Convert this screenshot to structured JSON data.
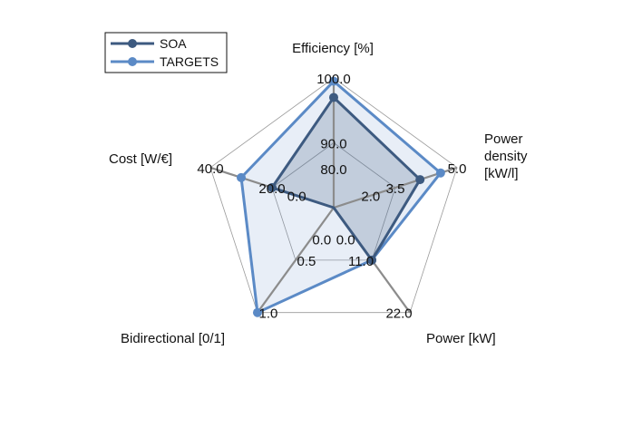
{
  "chart_data": {
    "type": "radar",
    "axes": [
      {
        "label": [
          "Efficiency [%]"
        ],
        "ticks": [
          "80.0",
          "90.0",
          "100.0"
        ],
        "min": 80,
        "max": 100
      },
      {
        "label": [
          "Power",
          "density",
          "[kW/l]"
        ],
        "ticks": [
          "2.0",
          "3.5",
          "5.0"
        ],
        "min": 2,
        "max": 5
      },
      {
        "label": [
          "Power [kW]"
        ],
        "ticks": [
          "0.0",
          "11.0",
          "22.0"
        ],
        "min": 0,
        "max": 22
      },
      {
        "label": [
          "Bidirectional [0/1]"
        ],
        "ticks": [
          "0.0",
          "0.5",
          "1.0"
        ],
        "min": 0,
        "max": 1
      },
      {
        "label": [
          "Cost [W/€]"
        ],
        "ticks": [
          "0.0",
          "20.0",
          "40.0"
        ],
        "min": 0,
        "max": 40
      }
    ],
    "series": [
      {
        "name": "SOA",
        "color": "#3d5a80",
        "values": [
          97,
          4.1,
          11,
          0,
          20
        ]
      },
      {
        "name": "TARGETS",
        "color": "#5b8ac6",
        "values": [
          99.5,
          4.6,
          11,
          1,
          30
        ]
      }
    ],
    "legend_position": "top-left",
    "grid": true
  }
}
